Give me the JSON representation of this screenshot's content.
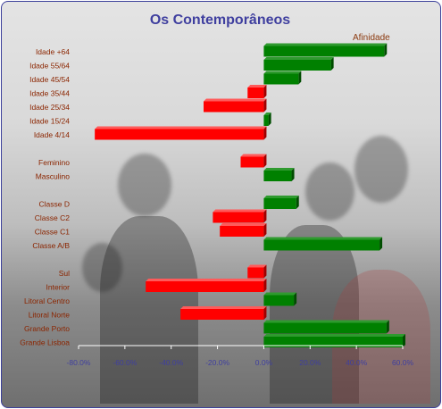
{
  "chart_data": {
    "type": "bar",
    "orientation": "horizontal",
    "title": "Os Contemporâneos",
    "categories": [
      "Idade +64",
      "Idade 55/64",
      "Idade 45/54",
      "Idade 35/44",
      "Idade 25/34",
      "Idade 15/24",
      "Idade 4/14",
      "Feminino",
      "Masculino",
      "Classe D",
      "Classe C2",
      "Classe C1",
      "Classe A/B",
      "Sul",
      "Interior",
      "Litoral Centro",
      "Litoral Norte",
      "Grande Porto",
      "Grande Lisboa"
    ],
    "series": [
      {
        "name": "Afinidade",
        "values": [
          52,
          29,
          15,
          -7,
          -26,
          2,
          -73,
          -10,
          12,
          14,
          -22,
          -19,
          50,
          -7,
          -51,
          13,
          -36,
          53,
          60
        ]
      }
    ],
    "xlim": [
      -80,
      60
    ],
    "x_ticks": [
      "-80.0%",
      "-60.0%",
      "-40.0%",
      "-20.0%",
      "0.0%",
      "20.0%",
      "40.0%",
      "60.0%"
    ],
    "positive_color": "#008000",
    "negative_color": "#ff0000",
    "legend_position": "top-right",
    "grid": false
  }
}
